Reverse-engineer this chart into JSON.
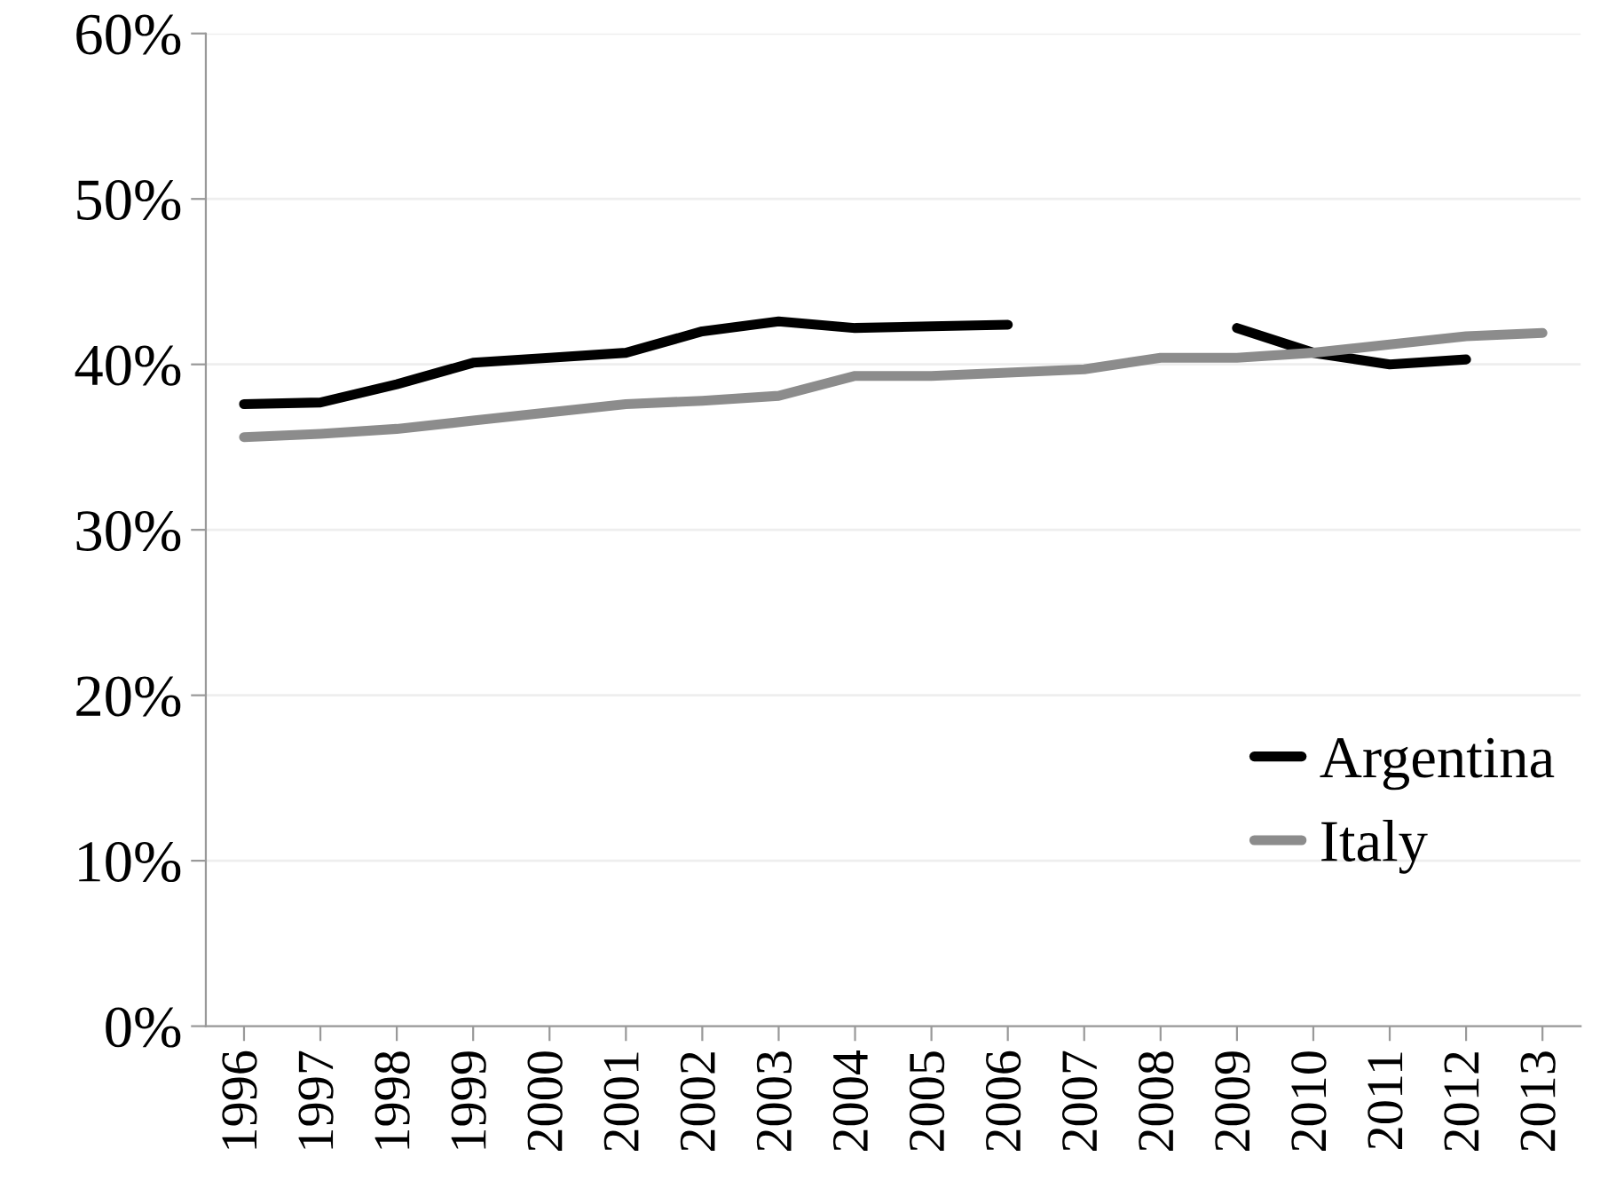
{
  "chart_data": {
    "type": "line",
    "categories": [
      "1996",
      "1997",
      "1998",
      "1999",
      "2000",
      "2001",
      "2002",
      "2003",
      "2004",
      "2005",
      "2006",
      "2007",
      "2008",
      "2009",
      "2010",
      "2011",
      "2012",
      "2013"
    ],
    "series": [
      {
        "name": "Argentina",
        "color": "#000000",
        "values": [
          37.6,
          37.7,
          38.8,
          40.1,
          40.4,
          40.7,
          42.0,
          42.6,
          42.2,
          42.3,
          42.4,
          null,
          null,
          42.2,
          40.7,
          40.0,
          40.3,
          null
        ]
      },
      {
        "name": "Italy",
        "color": "#8c8c8c",
        "values": [
          35.6,
          35.8,
          36.1,
          36.6,
          37.1,
          37.6,
          37.8,
          38.1,
          39.3,
          39.3,
          39.5,
          39.7,
          40.4,
          40.4,
          40.7,
          41.2,
          41.7,
          41.9
        ]
      }
    ],
    "ylim": [
      0,
      60
    ],
    "yticks": [
      {
        "value": 0,
        "label": "0%"
      },
      {
        "value": 10,
        "label": "10%"
      },
      {
        "value": 20,
        "label": "20%"
      },
      {
        "value": 30,
        "label": "30%"
      },
      {
        "value": 40,
        "label": "40%"
      },
      {
        "value": 50,
        "label": "50%"
      },
      {
        "value": 60,
        "label": "60%"
      }
    ],
    "grid": "y",
    "legend": "bottom right",
    "marker": "none",
    "line_style": "solid"
  }
}
